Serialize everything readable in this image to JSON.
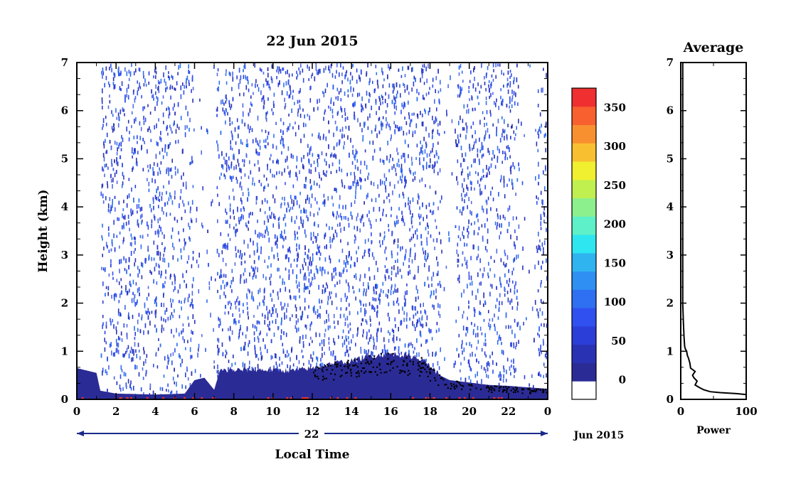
{
  "chart_data": [
    {
      "type": "heatmap",
      "title": "22 Jun 2015",
      "xlabel": "Local Time",
      "ylabel": "Height (km)",
      "x_ticks": [
        "0",
        "2",
        "4",
        "6",
        "8",
        "10",
        "12",
        "14",
        "16",
        "18",
        "20",
        "22",
        "0"
      ],
      "y_ticks": [
        "0",
        "1",
        "2",
        "3",
        "4",
        "5",
        "6",
        "7"
      ],
      "xlim": [
        0,
        24
      ],
      "ylim": [
        0,
        7
      ],
      "date_bar_label": "22",
      "date_suffix": "Jun 2015",
      "colorbar": {
        "ticks": [
          "0",
          "50",
          "100",
          "150",
          "200",
          "250",
          "300",
          "350"
        ],
        "range": [
          -25,
          375
        ],
        "levels": 16,
        "colors": [
          "#ffffff",
          "#2b2b96",
          "#2a32b4",
          "#2c3ed8",
          "#3050f0",
          "#2f6ff2",
          "#2f8ff2",
          "#30b4f0",
          "#2de6f0",
          "#5ef0c8",
          "#8cf08c",
          "#c0f050",
          "#f0f030",
          "#f8c030",
          "#f89030",
          "#f86030",
          "#f03030"
        ]
      },
      "boundary_layer_height_km": [
        [
          0,
          0.65
        ],
        [
          1,
          0.55
        ],
        [
          1.2,
          0.18
        ],
        [
          2,
          0.12
        ],
        [
          4,
          0.1
        ],
        [
          5.5,
          0.12
        ],
        [
          6,
          0.4
        ],
        [
          6.5,
          0.45
        ],
        [
          7,
          0.2
        ],
        [
          7.3,
          0.6
        ],
        [
          9,
          0.62
        ],
        [
          11,
          0.6
        ],
        [
          12,
          0.65
        ],
        [
          13,
          0.75
        ],
        [
          14,
          0.8
        ],
        [
          15,
          0.9
        ],
        [
          16,
          0.95
        ],
        [
          17,
          0.9
        ],
        [
          17.5,
          0.85
        ],
        [
          18,
          0.7
        ],
        [
          18.5,
          0.5
        ],
        [
          19,
          0.4
        ],
        [
          20,
          0.35
        ],
        [
          21,
          0.3
        ],
        [
          22,
          0.28
        ],
        [
          23,
          0.25
        ],
        [
          24,
          0.22
        ]
      ],
      "sparse_gaps_hours": [
        [
          5.9,
          7.1
        ],
        [
          18.5,
          19.3
        ],
        [
          22.5,
          23.4
        ]
      ]
    },
    {
      "type": "line",
      "title": "Average",
      "xlabel": "Power",
      "x_ticks": [
        "0",
        "100"
      ],
      "y_ticks": [
        "0",
        "1",
        "2",
        "3",
        "4",
        "5",
        "6",
        "7"
      ],
      "xlim": [
        0,
        100
      ],
      "ylim": [
        0,
        7
      ],
      "x": [
        100,
        85,
        60,
        45,
        35,
        28,
        22,
        25,
        20,
        18,
        22,
        15,
        14,
        12,
        10,
        9,
        7,
        6,
        5,
        4,
        3,
        3,
        3,
        3,
        3
      ],
      "y": [
        0.1,
        0.12,
        0.14,
        0.16,
        0.2,
        0.25,
        0.3,
        0.38,
        0.45,
        0.5,
        0.58,
        0.65,
        0.75,
        0.85,
        0.92,
        1.0,
        1.05,
        1.1,
        1.3,
        1.6,
        2.0,
        3.0,
        4.5,
        6.0,
        7.0
      ]
    }
  ]
}
